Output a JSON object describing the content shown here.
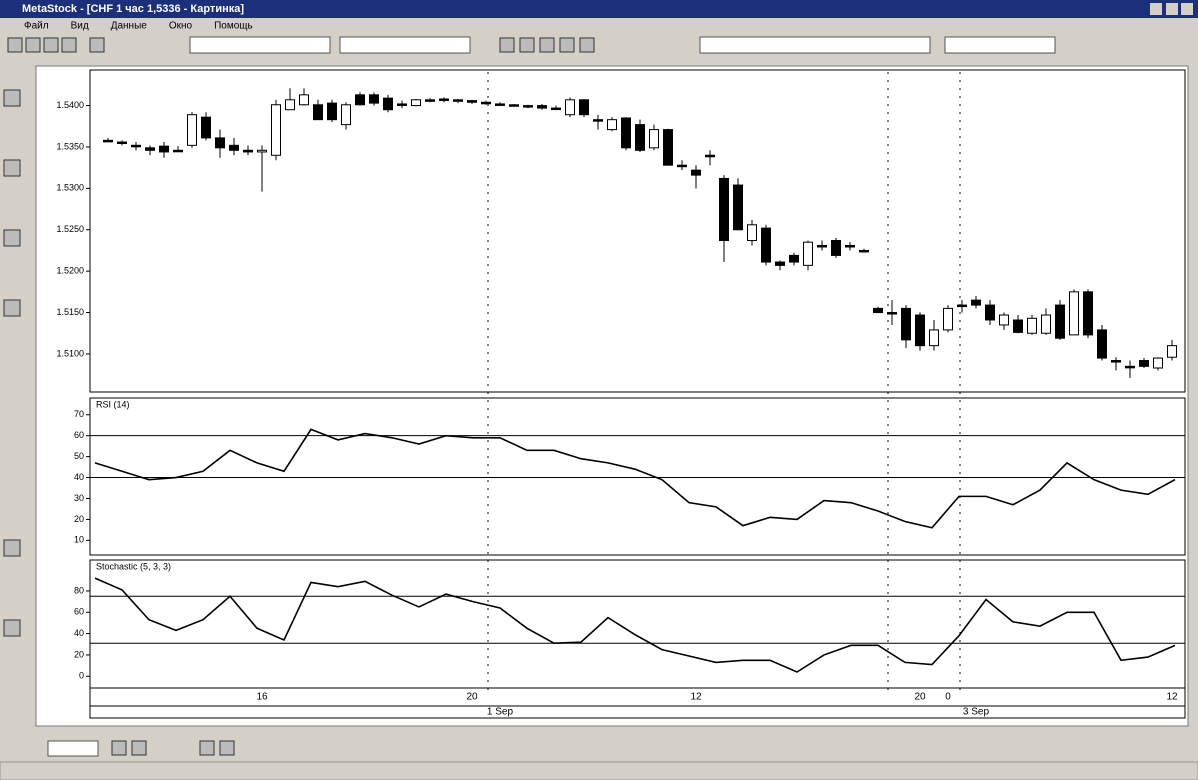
{
  "window": {
    "title": "MetaStock - [CHF 1 час 1,5336 - Картинка]",
    "menu": [
      "Файл",
      "Вид",
      "Данные",
      "Окно",
      "Помощь"
    ]
  },
  "chart_data": [
    {
      "type": "candlestick",
      "categories": [
        null,
        null,
        null,
        null,
        null,
        null,
        null,
        null,
        null,
        null,
        null,
        "16",
        null,
        null,
        null,
        null,
        null,
        null,
        null,
        null,
        null,
        null,
        null,
        null,
        null,
        null,
        "20",
        null,
        null,
        null,
        null,
        null,
        null,
        null,
        null,
        null,
        null,
        null,
        null,
        null,
        null,
        null,
        "12",
        null,
        null,
        null,
        null,
        null,
        null,
        null,
        null,
        null,
        null,
        null,
        null,
        null,
        null,
        null,
        "20",
        null,
        "0",
        null,
        null,
        null,
        null,
        null,
        null,
        null,
        null,
        null,
        null,
        null,
        null,
        null,
        null,
        null,
        "12"
      ],
      "dates": [
        null,
        null,
        null,
        null,
        null,
        null,
        null,
        null,
        null,
        null,
        null,
        null,
        null,
        null,
        null,
        null,
        null,
        null,
        null,
        null,
        null,
        null,
        null,
        null,
        null,
        null,
        null,
        null,
        "1 Sep",
        null,
        null,
        null,
        null,
        null,
        null,
        null,
        null,
        null,
        null,
        null,
        null,
        null,
        null,
        null,
        null,
        null,
        null,
        null,
        null,
        null,
        null,
        null,
        null,
        null,
        null,
        null,
        null,
        null,
        null,
        null,
        null,
        null,
        "3 Sep",
        null,
        null,
        null,
        null,
        null,
        null,
        null,
        null,
        null,
        null,
        null,
        null,
        null,
        null
      ],
      "open": [
        1.5358,
        1.5356,
        1.5352,
        1.5349,
        1.5351,
        1.5346,
        1.5352,
        1.5386,
        1.5361,
        1.5352,
        1.5346,
        1.5344,
        1.534,
        1.5395,
        1.5401,
        1.5401,
        1.5403,
        1.5377,
        1.5413,
        1.5413,
        1.5409,
        1.5402,
        1.54,
        1.5407,
        1.5408,
        1.5407,
        1.5406,
        1.5404,
        1.5402,
        1.5401,
        1.54,
        1.54,
        1.5397,
        1.5389,
        1.5407,
        1.5383,
        1.5371,
        1.5385,
        1.5377,
        1.5349,
        1.5371,
        1.5328,
        1.5322,
        1.534,
        1.5312,
        1.5304,
        1.5237,
        1.5252,
        1.5211,
        1.5219,
        1.5207,
        1.5231,
        1.5237,
        1.5231,
        1.5225,
        1.5155,
        1.515,
        1.5155,
        1.5147,
        1.511,
        1.5129,
        1.5159,
        1.5165,
        1.5159,
        1.5135,
        1.5141,
        1.5125,
        1.5125,
        1.5159,
        1.5123,
        1.5175,
        1.5129,
        1.5092,
        1.5085,
        1.5092,
        1.5083,
        1.5096
      ],
      "high": [
        1.5361,
        1.5358,
        1.5356,
        1.5352,
        1.5356,
        1.5351,
        1.5392,
        1.5392,
        1.5371,
        1.5361,
        1.5352,
        1.5352,
        1.5407,
        1.5421,
        1.5421,
        1.5407,
        1.5407,
        1.5404,
        1.5416,
        1.5416,
        1.5413,
        1.5406,
        1.5408,
        1.5409,
        1.541,
        1.5408,
        1.5407,
        1.5406,
        1.5404,
        1.5402,
        1.5401,
        1.5402,
        1.54,
        1.541,
        1.5408,
        1.5389,
        1.5386,
        1.5386,
        1.5383,
        1.5377,
        1.5372,
        1.5334,
        1.5328,
        1.5346,
        1.5316,
        1.5312,
        1.5262,
        1.5256,
        1.5213,
        1.5222,
        1.5237,
        1.5237,
        1.524,
        1.5235,
        1.5227,
        1.5157,
        1.5165,
        1.5159,
        1.515,
        1.5141,
        1.5159,
        1.5165,
        1.517,
        1.5165,
        1.515,
        1.5147,
        1.5147,
        1.5155,
        1.5165,
        1.5178,
        1.5178,
        1.5135,
        1.5096,
        1.5092,
        1.5095,
        1.5096,
        1.5117
      ],
      "low": [
        1.5356,
        1.5352,
        1.5346,
        1.534,
        1.5337,
        1.5344,
        1.5349,
        1.5358,
        1.5337,
        1.534,
        1.534,
        1.5296,
        1.5334,
        1.5395,
        1.54,
        1.5383,
        1.538,
        1.5371,
        1.54,
        1.54,
        1.5392,
        1.5397,
        1.5399,
        1.5404,
        1.5404,
        1.5403,
        1.5402,
        1.5401,
        1.54,
        1.5399,
        1.5397,
        1.5395,
        1.5395,
        1.5386,
        1.5386,
        1.5371,
        1.5369,
        1.5346,
        1.5344,
        1.5346,
        1.5328,
        1.5322,
        1.53,
        1.5328,
        1.5211,
        1.525,
        1.5231,
        1.5207,
        1.5201,
        1.5207,
        1.5201,
        1.5225,
        1.5216,
        1.5225,
        1.5225,
        1.515,
        1.5135,
        1.5107,
        1.5104,
        1.5104,
        1.5126,
        1.515,
        1.5155,
        1.5135,
        1.5129,
        1.5125,
        1.5123,
        1.5123,
        1.5117,
        1.5123,
        1.5119,
        1.5092,
        1.508,
        1.5071,
        1.5083,
        1.508,
        1.5092
      ],
      "close": [
        1.5358,
        1.5356,
        1.5351,
        1.5346,
        1.5344,
        1.5346,
        1.5389,
        1.5361,
        1.5349,
        1.5346,
        1.5344,
        1.5346,
        1.5401,
        1.5407,
        1.5413,
        1.5383,
        1.5383,
        1.5401,
        1.5401,
        1.5403,
        1.5395,
        1.5402,
        1.5407,
        1.5407,
        1.5408,
        1.5406,
        1.5404,
        1.5404,
        1.5402,
        1.54,
        1.54,
        1.5397,
        1.5397,
        1.5407,
        1.5389,
        1.5383,
        1.5383,
        1.5349,
        1.5346,
        1.5371,
        1.5328,
        1.5328,
        1.5316,
        1.534,
        1.5237,
        1.525,
        1.5256,
        1.5211,
        1.5207,
        1.5211,
        1.5235,
        1.5231,
        1.5219,
        1.5231,
        1.5225,
        1.515,
        1.515,
        1.5117,
        1.511,
        1.5129,
        1.5155,
        1.5159,
        1.5159,
        1.5141,
        1.5147,
        1.5126,
        1.5143,
        1.5147,
        1.5119,
        1.5175,
        1.5123,
        1.5095,
        1.5092,
        1.5085,
        1.5085,
        1.5095,
        1.511
      ],
      "up_color": "#ffffff",
      "down_color": "#000000",
      "ylim": [
        1.5054,
        1.5443
      ],
      "yticks": [
        {
          "value": 1.54,
          "label": "1.5400"
        },
        {
          "value": 1.535,
          "label": "1.5350"
        },
        {
          "value": 1.53,
          "label": "1.5300"
        },
        {
          "value": 1.525,
          "label": "1.5250"
        },
        {
          "value": 1.52,
          "label": "1.5200"
        },
        {
          "value": 1.515,
          "label": "1.5150"
        },
        {
          "value": 1.51,
          "label": "1.5100"
        }
      ]
    },
    {
      "type": "line",
      "title": "RSI (14)",
      "color": "#000000",
      "values": [
        47,
        43,
        39,
        40,
        43,
        53,
        47,
        43,
        63,
        58,
        61,
        59,
        56,
        60,
        59,
        59,
        53,
        53,
        49,
        47,
        44,
        39,
        28,
        26,
        17,
        21,
        20,
        29,
        28,
        24,
        19,
        16,
        31,
        31,
        27,
        34,
        47,
        39,
        34,
        32,
        39
      ],
      "ylim": [
        3,
        78
      ],
      "yticks": [
        70,
        60,
        50,
        40,
        30,
        20,
        10
      ],
      "reference_lines": [
        60,
        40
      ]
    },
    {
      "type": "line",
      "title": "Stochastic (5, 3, 3)",
      "color": "#000000",
      "values": [
        92,
        81,
        53,
        43,
        53,
        75,
        45,
        34,
        88,
        84,
        89,
        76,
        65,
        77,
        70,
        64,
        45,
        31,
        32,
        55,
        39,
        25,
        19,
        13,
        15,
        15,
        4,
        20,
        29,
        29,
        13,
        11,
        38,
        72,
        51,
        47,
        60,
        60,
        15,
        18,
        29
      ],
      "ylim": [
        -11,
        109
      ],
      "yticks": [
        80,
        60,
        40,
        20,
        0
      ],
      "reference_lines": [
        75,
        31
      ]
    }
  ]
}
